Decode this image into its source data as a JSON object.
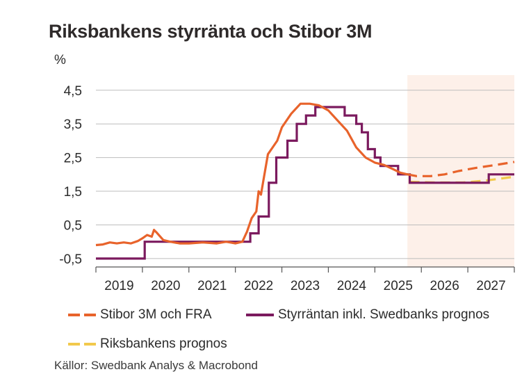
{
  "title": "Riksbankens styrränta och Stibor 3M",
  "source": "Källor: Swedbank Analys & Macrobond",
  "colors": {
    "stibor": "#e8632b",
    "policy": "#7b1a5e",
    "riksbank": "#f2c94c",
    "forecast_bg": "#fdf0e9",
    "grid": "#bdbdbd",
    "axis": "#555555"
  },
  "legend": [
    {
      "label": "Stibor 3M och FRA",
      "series": "stibor"
    },
    {
      "label": "Styrräntan inkl. Swedbanks prognos",
      "series": "policy"
    },
    {
      "label": "Riksbankens prognos",
      "series": "riksbank"
    }
  ],
  "chart_data": {
    "type": "line",
    "title": "Riksbankens styrränta och Stibor 3M",
    "ylabel": "%",
    "ylim": [
      -0.75,
      4.95
    ],
    "yticks": [
      -0.5,
      0.5,
      1.5,
      2.5,
      3.5,
      4.5
    ],
    "ytick_labels": [
      "-0,5",
      "0,5",
      "1,5",
      "2,5",
      "3,5",
      "4,5"
    ],
    "xlim": [
      2019.0,
      2028.0
    ],
    "xticks": [
      "2019",
      "2020",
      "2021",
      "2022",
      "2023",
      "2024",
      "2025",
      "2026",
      "2027"
    ],
    "forecast_start": 2025.7,
    "series": [
      {
        "name": "Stibor 3M och FRA",
        "key": "stibor",
        "style": "solid",
        "points": [
          [
            2019.0,
            -0.1
          ],
          [
            2019.15,
            -0.08
          ],
          [
            2019.3,
            -0.02
          ],
          [
            2019.45,
            -0.05
          ],
          [
            2019.6,
            -0.02
          ],
          [
            2019.75,
            -0.05
          ],
          [
            2019.9,
            0.02
          ],
          [
            2020.0,
            0.1
          ],
          [
            2020.1,
            0.2
          ],
          [
            2020.2,
            0.15
          ],
          [
            2020.25,
            0.35
          ],
          [
            2020.3,
            0.28
          ],
          [
            2020.45,
            0.05
          ],
          [
            2020.6,
            0.0
          ],
          [
            2020.8,
            -0.05
          ],
          [
            2021.0,
            -0.05
          ],
          [
            2021.3,
            -0.02
          ],
          [
            2021.6,
            -0.05
          ],
          [
            2021.8,
            0.0
          ],
          [
            2022.0,
            -0.05
          ],
          [
            2022.15,
            0.0
          ],
          [
            2022.25,
            0.3
          ],
          [
            2022.35,
            0.7
          ],
          [
            2022.45,
            0.9
          ],
          [
            2022.5,
            1.5
          ],
          [
            2022.55,
            1.4
          ],
          [
            2022.6,
            1.8
          ],
          [
            2022.7,
            2.6
          ],
          [
            2022.8,
            2.8
          ],
          [
            2022.9,
            3.0
          ],
          [
            2023.0,
            3.4
          ],
          [
            2023.2,
            3.8
          ],
          [
            2023.4,
            4.1
          ],
          [
            2023.6,
            4.1
          ],
          [
            2023.8,
            4.05
          ],
          [
            2024.0,
            3.9
          ],
          [
            2024.2,
            3.6
          ],
          [
            2024.4,
            3.3
          ],
          [
            2024.6,
            2.8
          ],
          [
            2024.8,
            2.5
          ],
          [
            2025.0,
            2.35
          ],
          [
            2025.2,
            2.28
          ],
          [
            2025.4,
            2.15
          ],
          [
            2025.55,
            2.05
          ],
          [
            2025.7,
            2.0
          ]
        ]
      },
      {
        "name": "Stibor 3M och FRA (prognos)",
        "key": "stibor",
        "style": "dashed",
        "points": [
          [
            2025.7,
            2.0
          ],
          [
            2025.9,
            1.95
          ],
          [
            2026.2,
            1.95
          ],
          [
            2026.5,
            2.0
          ],
          [
            2026.8,
            2.1
          ],
          [
            2027.2,
            2.2
          ],
          [
            2027.6,
            2.28
          ],
          [
            2028.0,
            2.37
          ]
        ]
      },
      {
        "name": "Styrräntan inkl. Swedbanks prognos",
        "key": "policy",
        "style": "step",
        "points": [
          [
            2019.0,
            -0.5
          ],
          [
            2020.05,
            -0.5
          ],
          [
            2020.05,
            0.0
          ],
          [
            2022.32,
            0.0
          ],
          [
            2022.32,
            0.25
          ],
          [
            2022.5,
            0.25
          ],
          [
            2022.5,
            0.75
          ],
          [
            2022.72,
            0.75
          ],
          [
            2022.72,
            1.75
          ],
          [
            2022.88,
            1.75
          ],
          [
            2022.88,
            2.5
          ],
          [
            2023.12,
            2.5
          ],
          [
            2023.12,
            3.0
          ],
          [
            2023.32,
            3.0
          ],
          [
            2023.32,
            3.5
          ],
          [
            2023.52,
            3.5
          ],
          [
            2023.52,
            3.75
          ],
          [
            2023.72,
            3.75
          ],
          [
            2023.72,
            4.0
          ],
          [
            2024.35,
            4.0
          ],
          [
            2024.35,
            3.75
          ],
          [
            2024.6,
            3.75
          ],
          [
            2024.6,
            3.5
          ],
          [
            2024.72,
            3.5
          ],
          [
            2024.72,
            3.25
          ],
          [
            2024.85,
            3.25
          ],
          [
            2024.85,
            2.75
          ],
          [
            2025.0,
            2.75
          ],
          [
            2025.0,
            2.5
          ],
          [
            2025.12,
            2.5
          ],
          [
            2025.12,
            2.25
          ],
          [
            2025.5,
            2.25
          ],
          [
            2025.5,
            2.0
          ],
          [
            2025.75,
            2.0
          ],
          [
            2025.75,
            1.75
          ],
          [
            2027.45,
            1.75
          ],
          [
            2027.45,
            2.0
          ],
          [
            2028.0,
            2.0
          ]
        ]
      },
      {
        "name": "Riksbankens prognos",
        "key": "riksbank",
        "style": "dashed",
        "points": [
          [
            2025.75,
            1.78
          ],
          [
            2026.3,
            1.76
          ],
          [
            2026.9,
            1.76
          ],
          [
            2027.4,
            1.82
          ],
          [
            2028.0,
            1.93
          ]
        ]
      }
    ]
  }
}
